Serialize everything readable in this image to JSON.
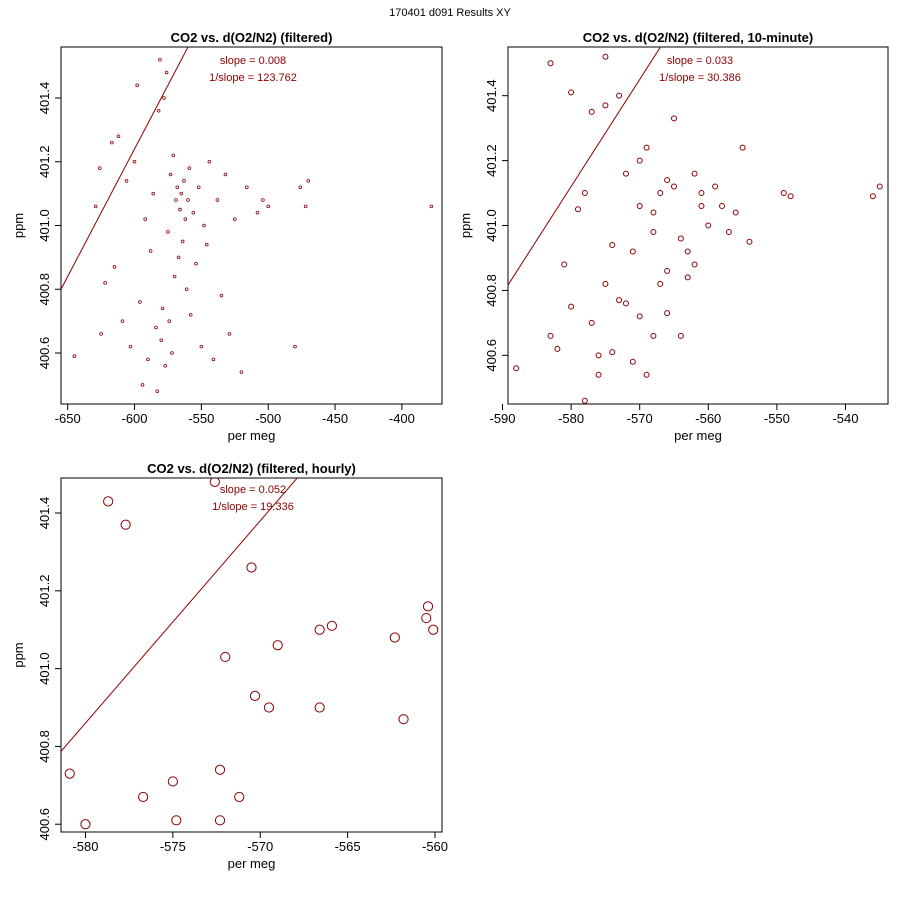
{
  "figure_title": "170401   d091   Results XY",
  "colors": {
    "points": "#8b0000",
    "fit_line": "#8b0000",
    "annotation": "#8b0000",
    "axis": "#000000"
  },
  "chart_data": [
    {
      "type": "scatter",
      "title": "CO2 vs. d(O2/N2) (filtered)",
      "xlabel": "per meg",
      "ylabel": "ppm",
      "xlim": [
        -655,
        -370
      ],
      "ylim": [
        400.44,
        401.56
      ],
      "xticks": [
        -650,
        -600,
        -550,
        -500,
        -450,
        -400
      ],
      "yticks": [
        400.6,
        400.8,
        401.0,
        401.2,
        401.4
      ],
      "xtick_labels": [
        "-650",
        "-600",
        "-550",
        "-500",
        "-450",
        "-400"
      ],
      "ytick_labels": [
        "400.6",
        "400.8",
        "401.0",
        "401.2",
        "401.4"
      ],
      "fit": {
        "slope": 0.008,
        "intercept": 406.04
      },
      "annotations": [
        "slope = 0.008",
        "1/slope = 123.762"
      ],
      "marker_radius": 1.4,
      "points": [
        [
          -645,
          400.59
        ],
        [
          -629,
          401.06
        ],
        [
          -626,
          401.18
        ],
        [
          -625,
          400.66
        ],
        [
          -622,
          400.82
        ],
        [
          -617,
          401.26
        ],
        [
          -615,
          400.87
        ],
        [
          -612,
          401.28
        ],
        [
          -609,
          400.7
        ],
        [
          -606,
          401.14
        ],
        [
          -603,
          400.62
        ],
        [
          -600,
          401.2
        ],
        [
          -598,
          401.44
        ],
        [
          -596,
          400.76
        ],
        [
          -594,
          400.5
        ],
        [
          -592,
          401.02
        ],
        [
          -590,
          400.58
        ],
        [
          -588,
          400.92
        ],
        [
          -586,
          401.1
        ],
        [
          -584,
          400.68
        ],
        [
          -583,
          400.48
        ],
        [
          -582,
          401.36
        ],
        [
          -581,
          401.52
        ],
        [
          -580,
          400.64
        ],
        [
          -579,
          400.74
        ],
        [
          -578,
          401.4
        ],
        [
          -577,
          400.56
        ],
        [
          -576,
          401.48
        ],
        [
          -575,
          400.98
        ],
        [
          -574,
          400.7
        ],
        [
          -573,
          401.16
        ],
        [
          -572,
          400.6
        ],
        [
          -571,
          401.22
        ],
        [
          -570,
          400.84
        ],
        [
          -569,
          401.08
        ],
        [
          -568,
          401.12
        ],
        [
          -567,
          400.9
        ],
        [
          -566,
          401.05
        ],
        [
          -565,
          401.1
        ],
        [
          -564,
          400.95
        ],
        [
          -563,
          401.14
        ],
        [
          -562,
          401.02
        ],
        [
          -561,
          400.8
        ],
        [
          -560,
          401.08
        ],
        [
          -559,
          401.18
        ],
        [
          -558,
          400.72
        ],
        [
          -556,
          401.04
        ],
        [
          -554,
          400.88
        ],
        [
          -552,
          401.12
        ],
        [
          -550,
          400.62
        ],
        [
          -548,
          401.0
        ],
        [
          -546,
          400.94
        ],
        [
          -544,
          401.2
        ],
        [
          -541,
          400.58
        ],
        [
          -538,
          401.08
        ],
        [
          -535,
          400.78
        ],
        [
          -532,
          401.16
        ],
        [
          -529,
          400.66
        ],
        [
          -525,
          401.02
        ],
        [
          -520,
          400.54
        ],
        [
          -516,
          401.12
        ],
        [
          -508,
          401.04
        ],
        [
          -504,
          401.08
        ],
        [
          -500,
          401.06
        ],
        [
          -480,
          400.62
        ],
        [
          -476,
          401.12
        ],
        [
          -472,
          401.06
        ],
        [
          -470,
          401.14
        ],
        [
          -378,
          401.06
        ]
      ]
    },
    {
      "type": "scatter",
      "title": "CO2 vs. d(O2/N2) (filtered, 10-minute)",
      "xlabel": "per meg",
      "ylabel": "ppm",
      "xlim": [
        -589.2,
        -533.8
      ],
      "ylim": [
        400.45,
        401.55
      ],
      "xticks": [
        -590,
        -580,
        -570,
        -560,
        -550,
        -540
      ],
      "yticks": [
        400.6,
        400.8,
        401.0,
        401.2,
        401.4
      ],
      "xtick_labels": [
        "-590",
        "-580",
        "-570",
        "-560",
        "-550",
        "-540"
      ],
      "ytick_labels": [
        "400.6",
        "400.8",
        "401.0",
        "401.2",
        "401.4"
      ],
      "fit": {
        "slope": 0.033,
        "intercept": 420.26
      },
      "annotations": [
        "slope = 0.033",
        "1/slope = 30.386"
      ],
      "marker_radius": 2.5,
      "points": [
        [
          -588,
          400.56
        ],
        [
          -583,
          400.66
        ],
        [
          -582,
          400.62
        ],
        [
          -581,
          400.88
        ],
        [
          -580,
          401.41
        ],
        [
          -579,
          401.05
        ],
        [
          -578,
          401.1
        ],
        [
          -578,
          400.46
        ],
        [
          -577,
          400.7
        ],
        [
          -577,
          401.35
        ],
        [
          -576,
          400.54
        ],
        [
          -575,
          401.37
        ],
        [
          -575,
          400.82
        ],
        [
          -574,
          400.94
        ],
        [
          -574,
          400.61
        ],
        [
          -573,
          401.4
        ],
        [
          -572,
          400.76
        ],
        [
          -572,
          401.16
        ],
        [
          -571,
          400.58
        ],
        [
          -571,
          400.92
        ],
        [
          -570,
          400.72
        ],
        [
          -570,
          401.06
        ],
        [
          -569,
          401.24
        ],
        [
          -569,
          400.54
        ],
        [
          -568,
          400.98
        ],
        [
          -568,
          400.66
        ],
        [
          -567,
          401.1
        ],
        [
          -567,
          400.82
        ],
        [
          -566,
          401.14
        ],
        [
          -566,
          400.86
        ],
        [
          -565,
          401.33
        ],
        [
          -565,
          401.12
        ],
        [
          -564,
          400.66
        ],
        [
          -564,
          400.96
        ],
        [
          -563,
          400.92
        ],
        [
          -562,
          401.16
        ],
        [
          -562,
          400.88
        ],
        [
          -561,
          401.06
        ],
        [
          -560,
          401.0
        ],
        [
          -559,
          401.12
        ],
        [
          -558,
          401.06
        ],
        [
          -557,
          400.98
        ],
        [
          -556,
          401.04
        ],
        [
          -555,
          401.24
        ],
        [
          -554,
          400.95
        ],
        [
          -549,
          401.1
        ],
        [
          -548,
          401.09
        ],
        [
          -536,
          401.09
        ],
        [
          -535,
          401.12
        ],
        [
          -583,
          401.5
        ],
        [
          -580,
          400.75
        ],
        [
          -576,
          400.6
        ],
        [
          -573,
          400.77
        ],
        [
          -570,
          401.2
        ],
        [
          -568,
          401.04
        ],
        [
          -566,
          400.73
        ],
        [
          -563,
          400.84
        ],
        [
          -561,
          401.1
        ],
        [
          -575,
          401.52
        ]
      ]
    },
    {
      "type": "scatter",
      "title": "CO2 vs. d(O2/N2) (filtered, hourly)",
      "xlabel": "per meg",
      "ylabel": "ppm",
      "xlim": [
        -581.4,
        -559.6
      ],
      "ylim": [
        400.58,
        401.49
      ],
      "xticks": [
        -580,
        -575,
        -570,
        -565,
        -560
      ],
      "yticks": [
        400.6,
        400.8,
        401.0,
        401.2,
        401.4
      ],
      "xtick_labels": [
        "-580",
        "-575",
        "-570",
        "-565",
        "-560"
      ],
      "ytick_labels": [
        "400.6",
        "400.8",
        "401.0",
        "401.2",
        "401.4"
      ],
      "fit": {
        "slope": 0.052,
        "intercept": 431.02
      },
      "annotations": [
        "slope = 0.052",
        "1/slope = 19.336"
      ],
      "marker_radius": 4.6,
      "points": [
        [
          -580.9,
          400.73
        ],
        [
          -580.0,
          400.6
        ],
        [
          -578.7,
          401.43
        ],
        [
          -577.7,
          401.37
        ],
        [
          -576.7,
          400.67
        ],
        [
          -575.0,
          400.71
        ],
        [
          -574.8,
          400.61
        ],
        [
          -572.6,
          401.48
        ],
        [
          -572.3,
          400.61
        ],
        [
          -572.3,
          400.74
        ],
        [
          -572.0,
          401.03
        ],
        [
          -571.2,
          400.67
        ],
        [
          -570.5,
          401.26
        ],
        [
          -570.3,
          400.93
        ],
        [
          -569.5,
          400.9
        ],
        [
          -569.0,
          401.06
        ],
        [
          -566.6,
          401.1
        ],
        [
          -566.6,
          400.9
        ],
        [
          -565.9,
          401.11
        ],
        [
          -562.3,
          401.08
        ],
        [
          -561.8,
          400.87
        ],
        [
          -560.5,
          401.13
        ],
        [
          -560.4,
          401.16
        ],
        [
          -560.1,
          401.1
        ]
      ]
    }
  ]
}
